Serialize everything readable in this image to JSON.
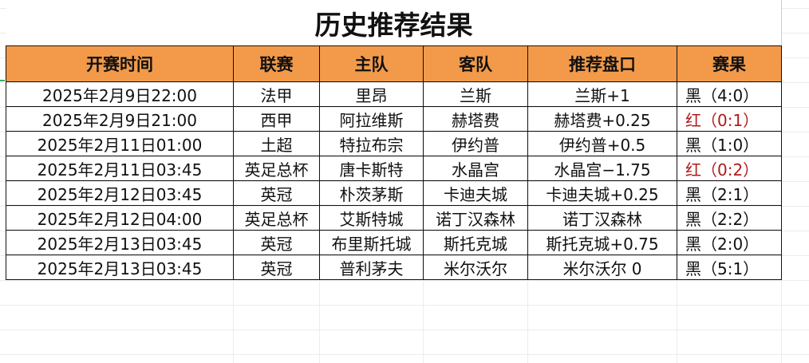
{
  "title": "历史推荐结果",
  "headers": [
    "开赛时间",
    "联赛",
    "主队",
    "客队",
    "推荐盘口",
    "赛果"
  ],
  "colors": {
    "header_bg": "#f29a4a",
    "win": "#111111",
    "loss": "#b11a1a"
  },
  "rows": [
    {
      "time": "2025年2月9日22:00",
      "league": "法甲",
      "home": "里昂",
      "away": "兰斯",
      "pick": "兰斯+1",
      "result": "黑（4:0）",
      "status": "black"
    },
    {
      "time": "2025年2月9日21:00",
      "league": "西甲",
      "home": "阿拉维斯",
      "away": "赫塔费",
      "pick": "赫塔费+0.25",
      "result": "红（0:1）",
      "status": "red"
    },
    {
      "time": "2025年2月11日01:00",
      "league": "土超",
      "home": "特拉布宗",
      "away": "伊约普",
      "pick": "伊约普+0.5",
      "result": "黑（1:0）",
      "status": "black"
    },
    {
      "time": "2025年2月11日03:45",
      "league": "英足总杯",
      "home": "唐卡斯特",
      "away": "水晶宫",
      "pick": "水晶宫−1.75",
      "result": "红（0:2）",
      "status": "red"
    },
    {
      "time": "2025年2月12日03:45",
      "league": "英冠",
      "home": "朴茨茅斯",
      "away": "卡迪夫城",
      "pick": "卡迪夫城+0.25",
      "result": "黑（2:1）",
      "status": "black"
    },
    {
      "time": "2025年2月12日04:00",
      "league": "英足总杯",
      "home": "艾斯特城",
      "away": "诺丁汉森林",
      "pick": "诺丁汉森林",
      "result": "黑（2:2）",
      "status": "black"
    },
    {
      "time": "2025年2月13日03:45",
      "league": "英冠",
      "home": "布里斯托城",
      "away": "斯托克城",
      "pick": "斯托克城+0.75",
      "result": "黑（2:0）",
      "status": "black"
    },
    {
      "time": "2025年2月13日03:45",
      "league": "英冠",
      "home": "普利茅夫",
      "away": "米尔沃尔",
      "pick": "米尔沃尔 0",
      "result": "黑（5:1）",
      "status": "black"
    }
  ]
}
